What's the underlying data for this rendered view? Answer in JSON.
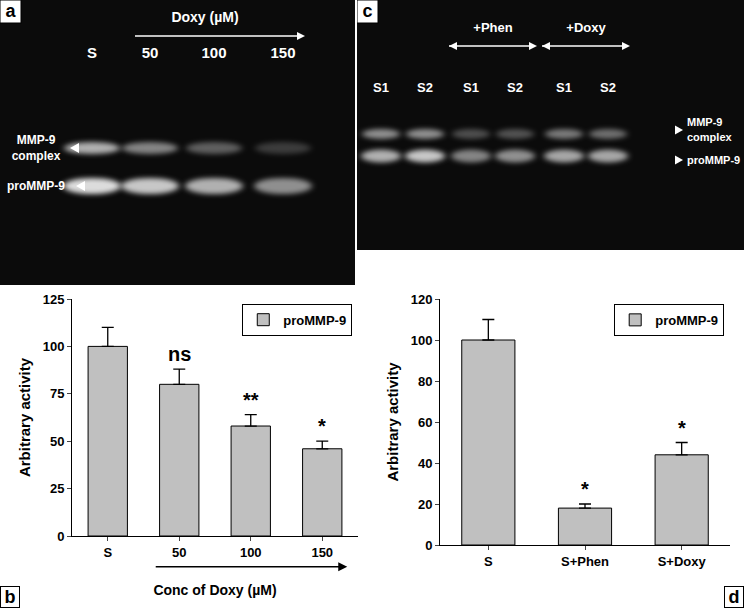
{
  "panel_labels": [
    "a",
    "b",
    "c",
    "d"
  ],
  "gel_a": {
    "header": "Doxy (µM)",
    "lanes": [
      "S",
      "50",
      "100",
      "150"
    ],
    "bands": [
      [
        "MMP-9",
        "complex"
      ],
      [
        "proMMP-9"
      ]
    ]
  },
  "gel_c": {
    "lane_groups": [
      null,
      null,
      "+Phen",
      "+Phen",
      "+Doxy",
      "+Doxy"
    ],
    "lanes": [
      "S1",
      "S2",
      "S1",
      "S2",
      "S1",
      "S2"
    ],
    "bands": [
      [
        "MMP-9",
        "complex"
      ],
      [
        "proMMP-9"
      ]
    ]
  },
  "chart_data": [
    {
      "type": "bar",
      "categories": [
        "S",
        "50",
        "100",
        "150"
      ],
      "series": [
        {
          "name": "proMMP-9",
          "color": "#c0c0c0",
          "values": [
            100,
            80,
            58,
            46
          ],
          "errors": [
            10,
            8,
            6,
            4
          ]
        }
      ],
      "xlabel": "Conc of Doxy (µM)",
      "ylabel": "Arbitrary activity",
      "ylim": [
        0,
        125
      ],
      "yticks": [
        0,
        25,
        50,
        75,
        100,
        125
      ],
      "grid": false,
      "legend": "upper right",
      "annotations": [
        {
          "category": "50",
          "text": "ns"
        },
        {
          "category": "100",
          "text": "**"
        },
        {
          "category": "150",
          "text": "*"
        }
      ]
    },
    {
      "type": "bar",
      "categories": [
        "S",
        "S+Phen",
        "S+Doxy"
      ],
      "series": [
        {
          "name": "proMMP-9",
          "color": "#c0c0c0",
          "values": [
            100,
            18,
            44
          ],
          "errors": [
            10,
            2,
            6
          ]
        }
      ],
      "ylabel": "Arbitrary activity",
      "ylim": [
        0,
        120
      ],
      "yticks": [
        0,
        20,
        40,
        60,
        80,
        100,
        120
      ],
      "grid": false,
      "legend": "upper right",
      "annotations": [
        {
          "category": "S+Phen",
          "text": "*"
        },
        {
          "category": "S+Doxy",
          "text": "*"
        }
      ]
    }
  ]
}
